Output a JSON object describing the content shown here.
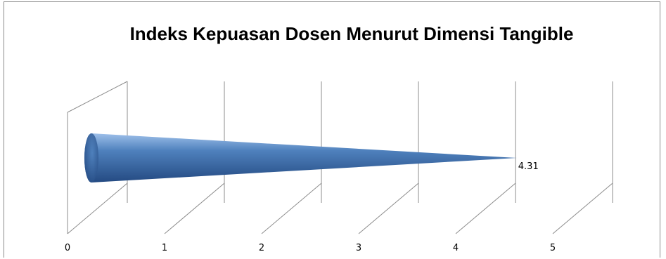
{
  "chart_data": {
    "type": "bar",
    "subtype": "3d-horizontal-cone",
    "title": "Indeks Kepuasan Dosen Menurut Dimensi Tangible",
    "categories": [
      ""
    ],
    "values": [
      4.31
    ],
    "data_labels": [
      "4.31"
    ],
    "x_ticks": [
      "0",
      "1",
      "2",
      "3",
      "4",
      "5"
    ],
    "xlim": [
      0,
      5
    ],
    "grid": true,
    "legend": "none",
    "colors": {
      "cone_dark": "#244a82",
      "cone_mid": "#4f81bd",
      "cone_light": "#9ec0ea",
      "grid": "#8c8c8c"
    }
  }
}
